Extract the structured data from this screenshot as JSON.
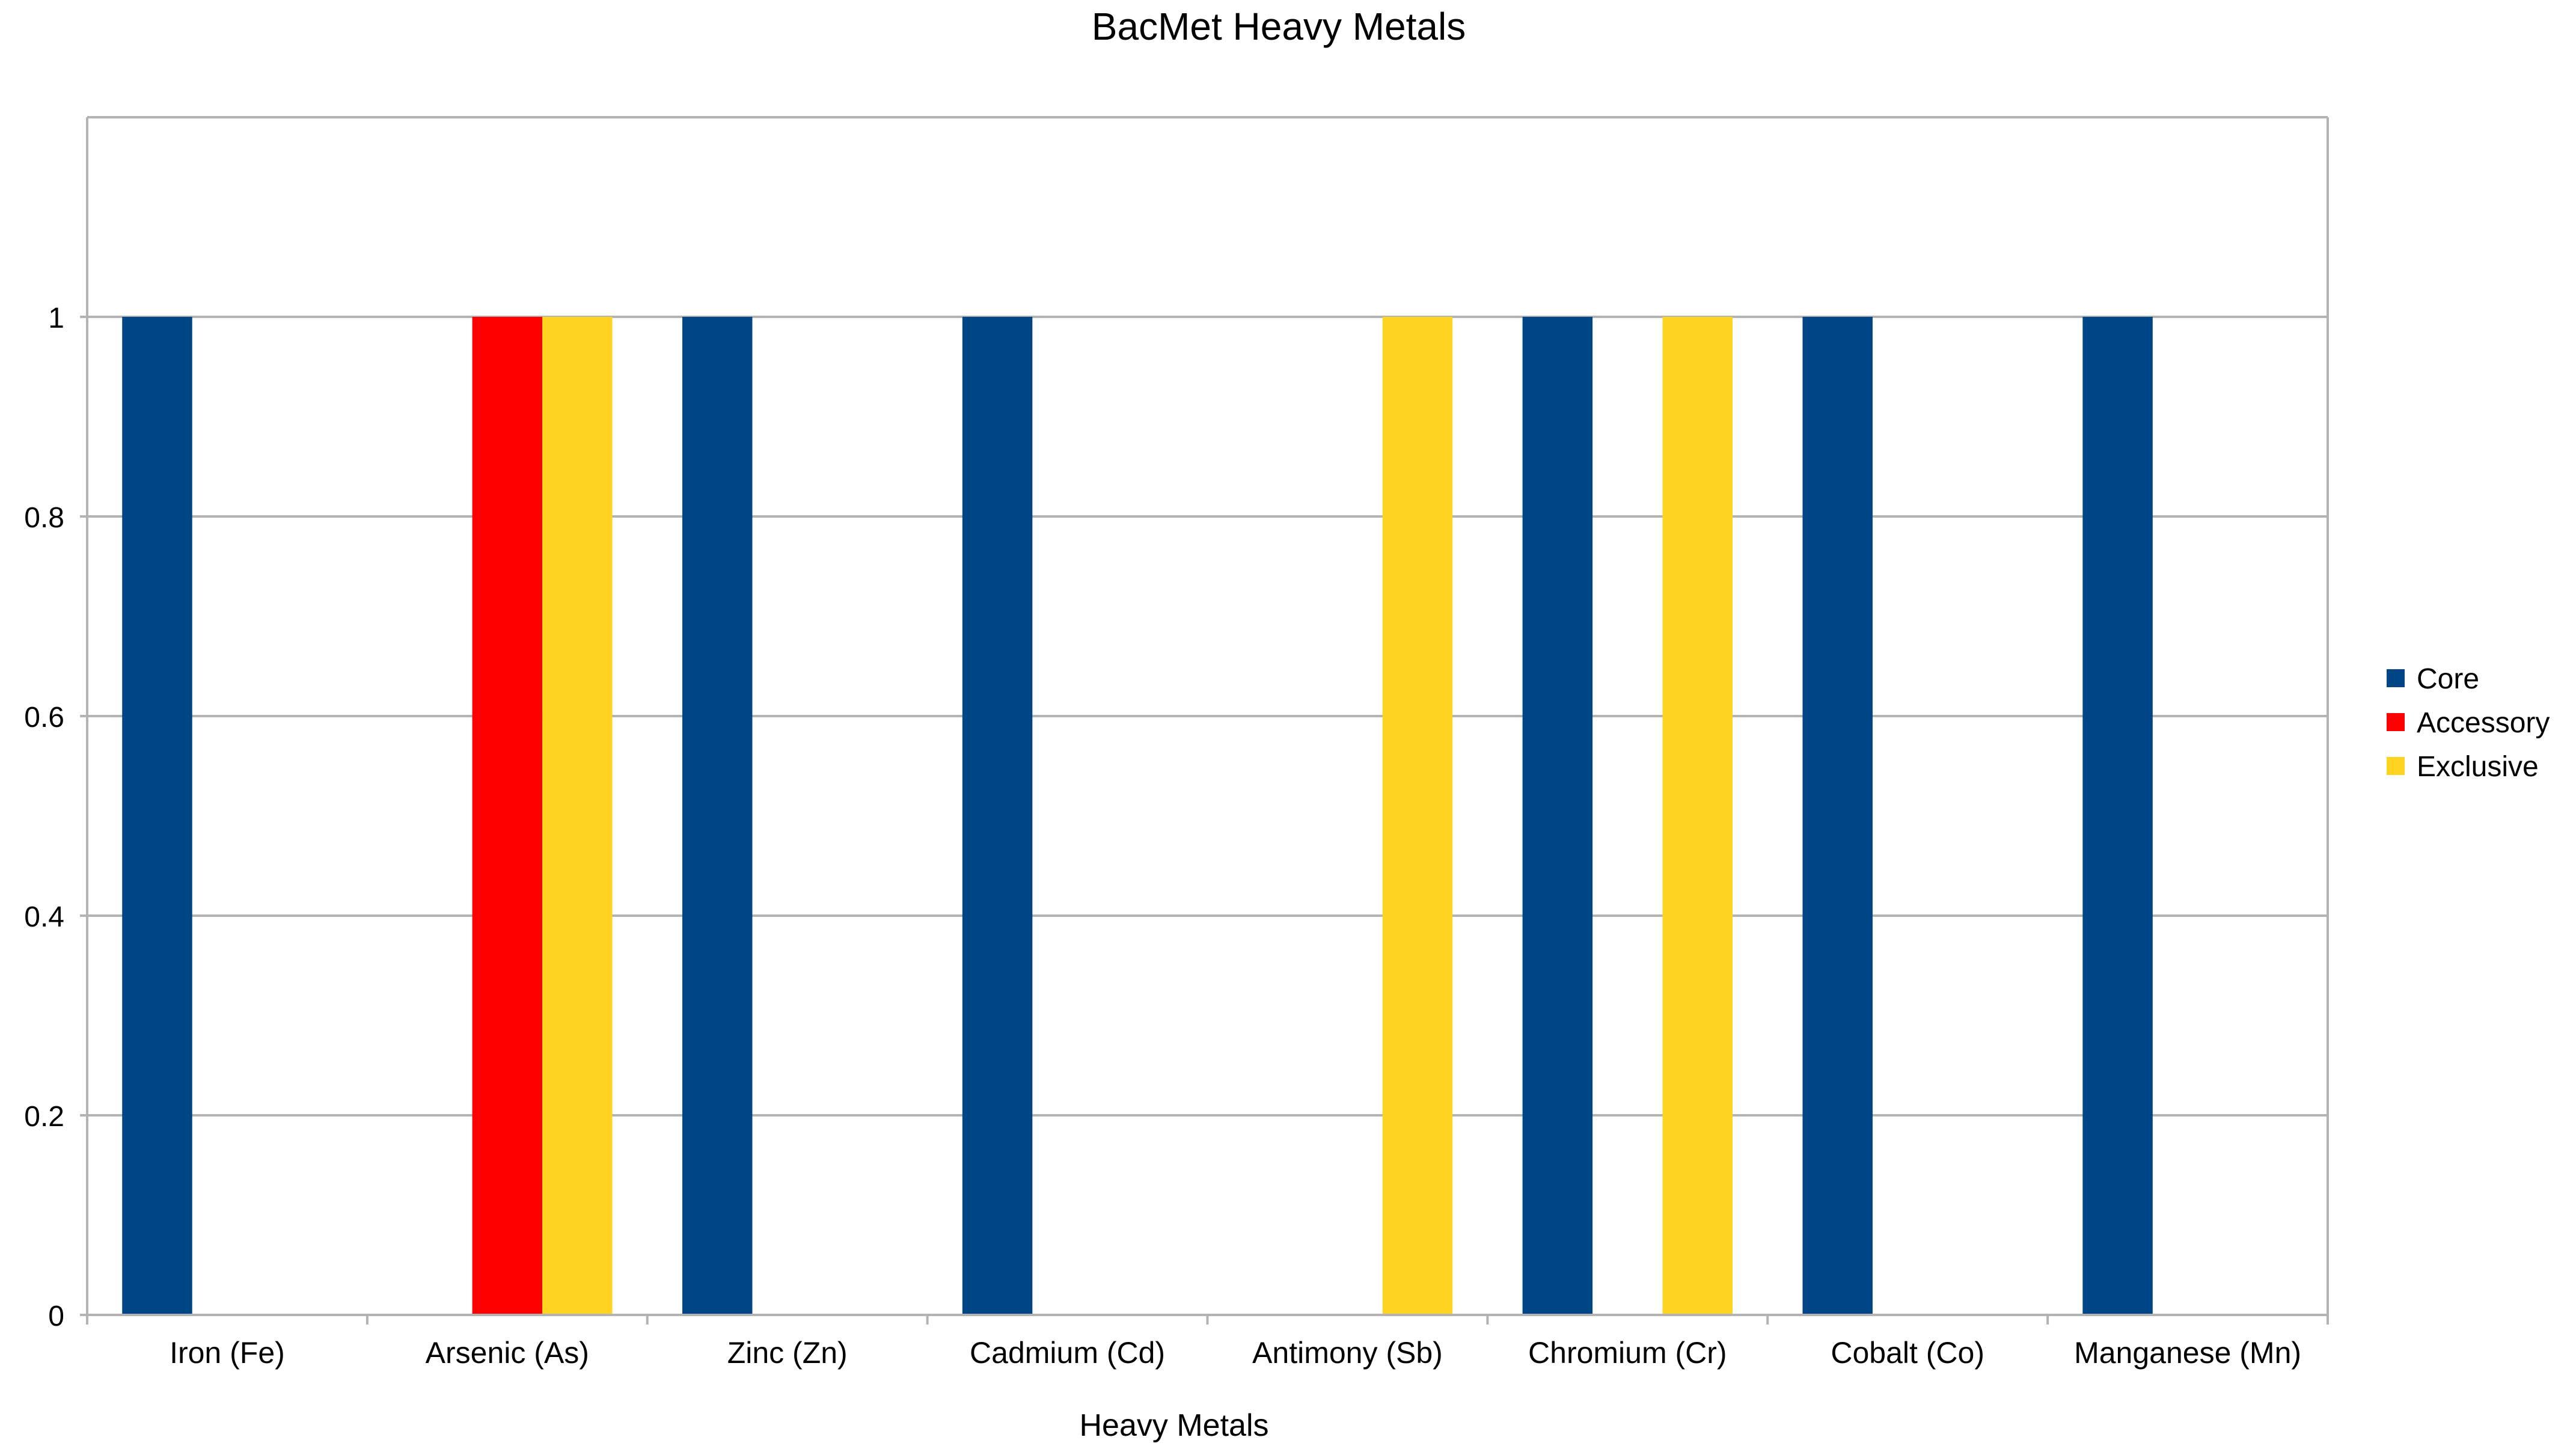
{
  "chart_data": {
    "type": "bar",
    "title": "BacMet Heavy Metals",
    "xlabel": "Heavy Metals",
    "ylabel": "",
    "ylim": [
      0,
      1.2
    ],
    "yticks": [
      0,
      0.2,
      0.4,
      0.6,
      0.8,
      1
    ],
    "ytick_labels": [
      "0",
      "0.2",
      "0.4",
      "0.6",
      "0.8",
      "1"
    ],
    "grid": true,
    "legend_position": "right",
    "categories": [
      "Iron (Fe)",
      "Arsenic (As)",
      "Zinc (Zn)",
      "Cadmium (Cd)",
      "Antimony (Sb)",
      "Chromium (Cr)",
      "Cobalt (Co)",
      "Manganese (Mn)"
    ],
    "series": [
      {
        "name": "Core",
        "color": "#004586",
        "values": [
          1,
          0,
          1,
          1,
          0,
          1,
          1,
          1
        ]
      },
      {
        "name": "Accessory",
        "color": "#ff0000",
        "values": [
          0,
          1,
          0,
          0,
          0,
          0,
          0,
          0
        ]
      },
      {
        "name": "Exclusive",
        "color": "#ffd320",
        "values": [
          0,
          1,
          0,
          0,
          1,
          1,
          0,
          0
        ]
      }
    ]
  }
}
